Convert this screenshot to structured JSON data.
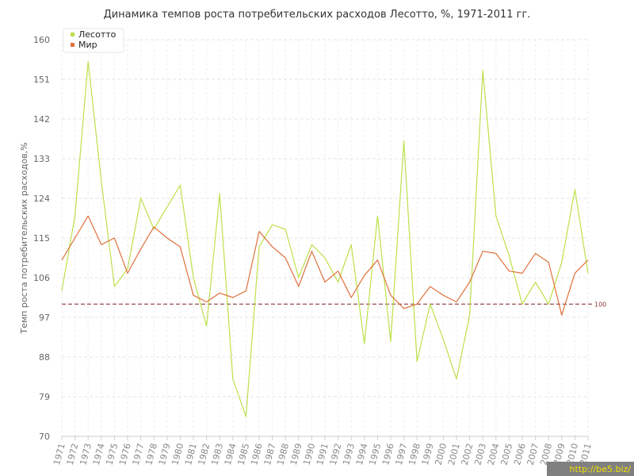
{
  "chart_data": {
    "type": "line",
    "title": "Динамика темпов роста потребительских расходов Лесотто, %, 1971-2011 гг.",
    "xlabel": "",
    "ylabel": "Темп роста потребительских расходов,%",
    "ylim": [
      70,
      160
    ],
    "yticks": [
      "70",
      "79",
      "88",
      "97",
      "106",
      "115",
      "124",
      "133",
      "142",
      "151",
      "160"
    ],
    "categories": [
      "1971",
      "1972",
      "1973",
      "1974",
      "1975",
      "1976",
      "1977",
      "1978",
      "1979",
      "1980",
      "1981",
      "1982",
      "1983",
      "1984",
      "1985",
      "1986",
      "1987",
      "1988",
      "1989",
      "1990",
      "1991",
      "1992",
      "1993",
      "1994",
      "1995",
      "1996",
      "1997",
      "1998",
      "1999",
      "2000",
      "2001",
      "2002",
      "2003",
      "2004",
      "2005",
      "2006",
      "2007",
      "2008",
      "2009",
      "2010",
      "2011"
    ],
    "series": [
      {
        "name": "Лесотто",
        "color": "#bde04a",
        "values": [
          103,
          120,
          155,
          128,
          104,
          108,
          124,
          117,
          122,
          127,
          106,
          95,
          125,
          83,
          74.5,
          113,
          118,
          117,
          106,
          113.5,
          110.5,
          105,
          113.5,
          91,
          120,
          91.5,
          137,
          87,
          100,
          92,
          83,
          97.5,
          153,
          120,
          111,
          100,
          105,
          100,
          109.5,
          126,
          107
        ]
      },
      {
        "name": "Мир",
        "color": "#e0703c",
        "values": [
          110,
          115,
          120,
          113.5,
          115,
          107,
          112.5,
          117.5,
          115,
          113,
          102,
          100.5,
          102.5,
          101.5,
          103,
          116.5,
          113,
          110.5,
          104,
          112,
          105,
          107.5,
          101.5,
          106.5,
          110,
          102,
          99,
          100,
          104,
          102,
          100.5,
          105,
          112,
          111.5,
          107.5,
          107,
          111.5,
          109.5,
          97.5,
          107,
          110
        ]
      }
    ],
    "reference_line": {
      "value": 100,
      "label": "100",
      "color": "#8b3a3a"
    },
    "grid": true,
    "legend_position": "top-left"
  },
  "watermark": {
    "text": "http://be5.biz/"
  }
}
